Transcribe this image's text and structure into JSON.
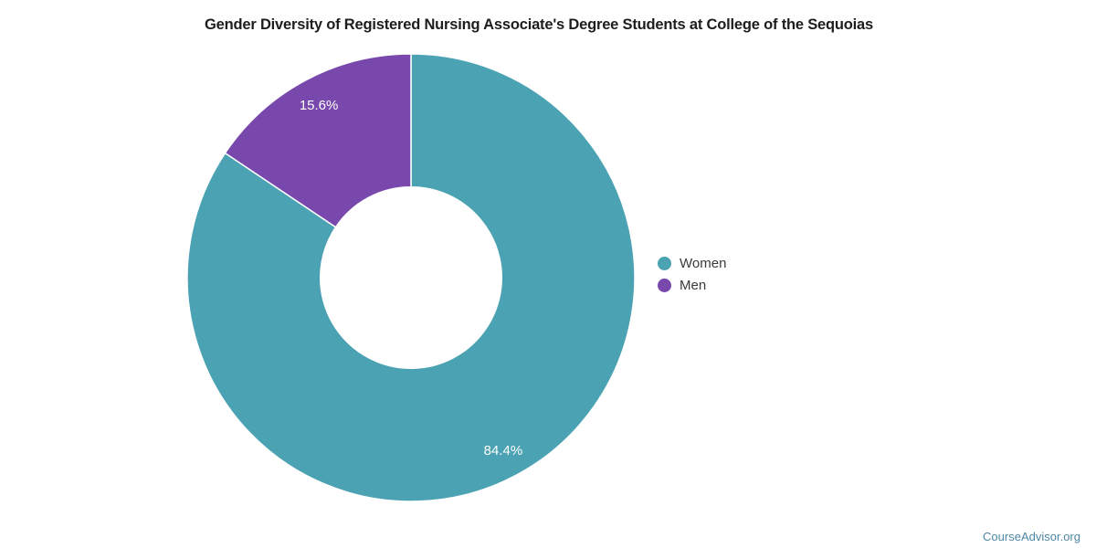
{
  "page": {
    "footer": {
      "label": "CourseAdvisor.org",
      "color": "#4d87a6"
    }
  },
  "chart_data": {
    "type": "pie",
    "title": "Gender Diversity of Registered Nursing Associate's Degree Students at College of the Sequoias",
    "labels": [
      "Women",
      "Men"
    ],
    "values": [
      84.4,
      15.6
    ],
    "value_labels": [
      "84.4%",
      "15.6%"
    ],
    "colors": [
      "#4aa2b2",
      "#7848ac"
    ],
    "hole_ratio": 0.405,
    "start_angle_deg": 0,
    "direction": "clockwise",
    "legend_position": "right",
    "slice_border_color": "#ffffff",
    "label_text_color": "#ffffff"
  }
}
